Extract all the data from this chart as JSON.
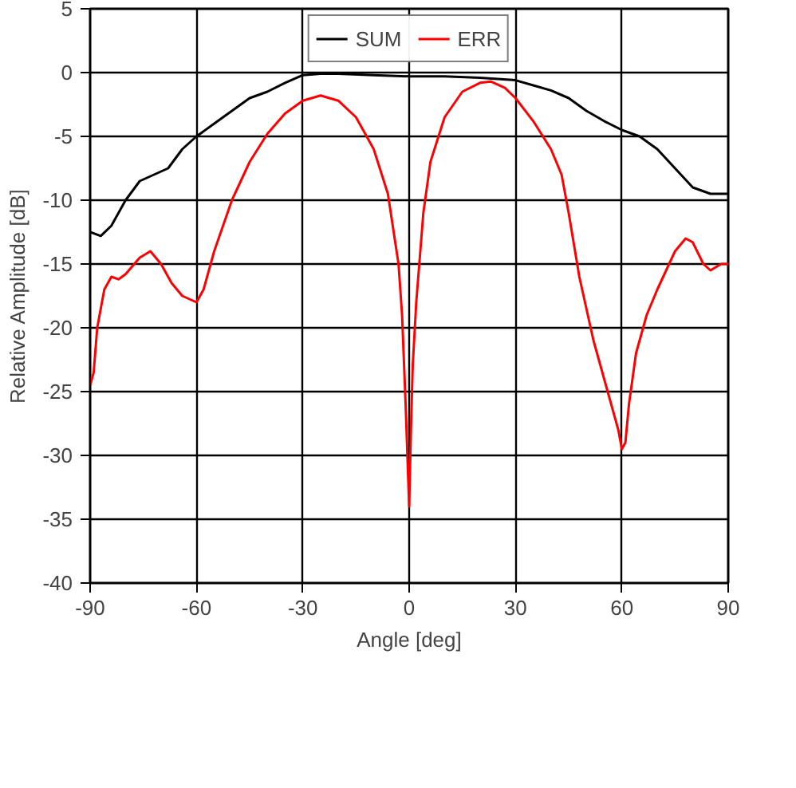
{
  "chart_data": {
    "type": "line",
    "xlabel": "Angle [deg]",
    "ylabel": "Relative Amplitude [dB]",
    "xlim": [
      -90,
      90
    ],
    "xticks": [
      -90,
      -60,
      -30,
      0,
      30,
      60,
      90
    ],
    "ylim": [
      -40,
      5
    ],
    "yticks": [
      -40,
      -35,
      -30,
      -25,
      -20,
      -15,
      -10,
      -5,
      0,
      5
    ],
    "grid": true,
    "legend": "top",
    "line_style": "solid",
    "marker": "none",
    "series": [
      {
        "name": "SUM",
        "color": "#000000",
        "x": [
          -90,
          -87,
          -84,
          -80,
          -76,
          -72,
          -68,
          -64,
          -60,
          -55,
          -50,
          -45,
          -40,
          -35,
          -30,
          -25,
          -20,
          -10,
          0,
          10,
          20,
          30,
          35,
          40,
          45,
          50,
          55,
          60,
          65,
          70,
          75,
          80,
          85,
          90
        ],
        "values": [
          -12.5,
          -12.8,
          -12,
          -10,
          -8.5,
          -8,
          -7.5,
          -6,
          -5,
          -4,
          -3,
          -2,
          -1.5,
          -0.8,
          -0.2,
          -0.1,
          -0.1,
          -0.2,
          -0.3,
          -0.3,
          -0.4,
          -0.6,
          -1,
          -1.4,
          -2,
          -3,
          -3.8,
          -4.5,
          -5,
          -6,
          -7.5,
          -9,
          -9.5,
          -9.5
        ]
      },
      {
        "name": "ERR",
        "color": "#ff0000",
        "x": [
          -90,
          -89,
          -88,
          -86,
          -84,
          -82,
          -80,
          -76,
          -73,
          -70,
          -67,
          -64,
          -60,
          -58,
          -55,
          -50,
          -45,
          -40,
          -35,
          -30,
          -25,
          -20,
          -15,
          -10,
          -6,
          -3,
          -2,
          -1,
          0,
          0.5,
          1,
          2,
          4,
          6,
          10,
          15,
          20,
          23,
          27,
          30,
          35,
          40,
          43,
          45,
          48,
          52,
          56,
          59,
          60,
          61,
          62,
          64,
          67,
          70,
          75,
          78,
          80,
          83,
          85,
          88,
          90
        ],
        "values": [
          -24.5,
          -23.5,
          -20,
          -17,
          -16,
          -16.2,
          -15.8,
          -14.5,
          -14,
          -15,
          -16.5,
          -17.5,
          -18,
          -17,
          -14,
          -10,
          -7,
          -4.8,
          -3.2,
          -2.2,
          -1.8,
          -2.2,
          -3.5,
          -6,
          -9.5,
          -15,
          -19,
          -26,
          -34,
          -28,
          -23,
          -18,
          -11,
          -7,
          -3.5,
          -1.5,
          -0.8,
          -0.7,
          -1.2,
          -2,
          -3.8,
          -6,
          -8,
          -11,
          -16,
          -21,
          -25,
          -28,
          -29.5,
          -29,
          -26,
          -22,
          -19,
          -17,
          -14,
          -13,
          -13.3,
          -15,
          -15.5,
          -15,
          -15
        ]
      }
    ]
  }
}
